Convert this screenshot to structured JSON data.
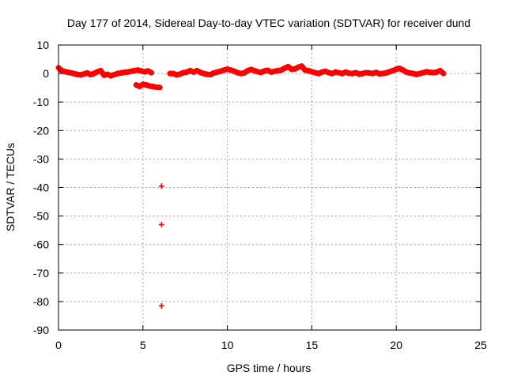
{
  "chart_data": {
    "type": "scatter",
    "title": "Day 177 of 2014, Sidereal Day-to-day VTEC variation (SDTVAR) for receiver dund",
    "xlabel": "GPS time / hours",
    "ylabel": "SDTVAR / TECUs",
    "xlim": [
      0,
      25
    ],
    "ylim": [
      -90,
      10
    ],
    "xticks": [
      0,
      5,
      10,
      15,
      20,
      25
    ],
    "yticks": [
      10,
      0,
      -10,
      -20,
      -30,
      -40,
      -50,
      -60,
      -70,
      -80,
      -90
    ],
    "grid": true,
    "legend": "none",
    "marker": "plus",
    "series_color": "#ff0000",
    "series": [
      {
        "x": [
          0.0,
          0.1,
          0.2,
          0.3,
          0.5,
          0.7,
          0.9,
          1.1,
          1.3,
          1.5,
          1.7,
          1.9,
          2.1,
          2.3,
          2.5,
          2.7,
          2.9,
          3.1,
          3.3,
          3.5,
          3.7,
          3.9,
          4.1,
          4.3,
          4.5,
          4.7,
          4.9,
          5.1,
          5.3,
          5.5,
          4.6,
          4.8,
          5.0,
          5.2,
          5.4,
          5.6,
          5.8,
          6.0,
          6.1,
          6.1,
          6.1,
          6.6,
          6.8,
          7.0,
          7.2,
          7.4,
          7.6,
          7.8,
          8.0,
          8.2,
          8.4,
          8.6,
          8.8,
          9.0,
          9.2,
          9.4,
          9.6,
          9.8,
          10.0,
          10.2,
          10.4,
          10.6,
          10.8,
          11.0,
          11.2,
          11.4,
          11.6,
          11.8,
          12.0,
          12.2,
          12.4,
          12.6,
          12.8,
          13.0,
          13.2,
          13.4,
          13.6,
          13.8,
          14.0,
          14.2,
          14.4,
          14.6,
          14.8,
          15.0,
          15.2,
          15.4,
          15.6,
          15.8,
          16.0,
          16.2,
          16.4,
          16.6,
          16.8,
          17.0,
          17.2,
          17.4,
          17.6,
          17.8,
          18.0,
          18.2,
          18.4,
          18.6,
          18.8,
          19.0,
          19.2,
          19.4,
          19.6,
          19.8,
          20.0,
          20.2,
          20.4,
          20.6,
          20.8,
          21.0,
          21.2,
          21.4,
          21.6,
          21.8,
          22.0,
          22.2,
          22.4,
          22.6,
          22.8
        ],
        "y": [
          2.0,
          1.5,
          1.0,
          0.8,
          0.5,
          0.3,
          0.0,
          -0.3,
          -0.5,
          -0.2,
          0.2,
          -0.4,
          0.0,
          0.6,
          1.0,
          -0.6,
          -0.3,
          -0.8,
          -0.4,
          0.0,
          0.2,
          0.4,
          0.5,
          0.8,
          1.0,
          1.2,
          0.9,
          0.6,
          0.9,
          0.3,
          -4.0,
          -4.5,
          -3.8,
          -4.0,
          -4.4,
          -4.6,
          -4.8,
          -4.9,
          -39.5,
          -53.0,
          -81.5,
          0.0,
          0.0,
          -0.5,
          -0.2,
          0.3,
          0.5,
          1.0,
          0.5,
          1.0,
          0.4,
          0.0,
          -0.3,
          -0.4,
          0.2,
          0.5,
          0.8,
          1.2,
          1.5,
          1.2,
          0.8,
          0.3,
          0.0,
          0.2,
          1.0,
          1.4,
          1.0,
          0.6,
          0.4,
          0.9,
          1.1,
          0.5,
          0.8,
          1.0,
          1.2,
          1.9,
          2.4,
          1.5,
          1.6,
          2.2,
          2.6,
          1.2,
          1.0,
          0.6,
          0.3,
          0.0,
          0.5,
          0.8,
          0.3,
          0.0,
          0.5,
          0.3,
          0.0,
          0.5,
          0.1,
          0.0,
          0.3,
          -0.2,
          0.0,
          0.3,
          0.2,
          0.0,
          0.4,
          -0.1,
          0.0,
          0.2,
          0.6,
          1.0,
          1.5,
          1.8,
          1.2,
          0.5,
          0.2,
          0.0,
          -0.3,
          0.0,
          0.3,
          0.6,
          0.4,
          0.3,
          0.5,
          1.0,
          0.0
        ]
      }
    ]
  }
}
